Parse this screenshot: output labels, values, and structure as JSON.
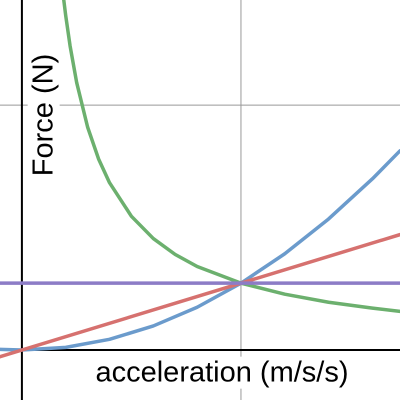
{
  "chart_data": {
    "type": "line",
    "x_label": "acceleration (m/s/s)",
    "y_label": "Force (N)",
    "xlim": [
      -0.1,
      1.726
    ],
    "ylim": [
      -0.204,
      1.429
    ],
    "xticks": [
      0,
      1
    ],
    "yticks": [
      0,
      1
    ],
    "grid": true,
    "series": [
      {
        "color": "#6cb06e",
        "x": [
          0.19,
          0.2,
          0.22,
          0.25,
          0.3,
          0.35,
          0.4,
          0.5,
          0.6,
          0.7,
          0.8,
          1,
          1.2,
          1.4,
          1.6,
          1.726
        ],
        "values": [
          1.437,
          1.365,
          1.241,
          1.092,
          0.91,
          0.78,
          0.683,
          0.546,
          0.455,
          0.39,
          0.341,
          0.273,
          0.228,
          0.195,
          0.171,
          0.158
        ]
      },
      {
        "color": "#6b9bcc",
        "x": [
          -0.1,
          0,
          0.2,
          0.4,
          0.6,
          0.8,
          1,
          1.2,
          1.4,
          1.6,
          1.726
        ],
        "values": [
          0.0027,
          0,
          0.0109,
          0.0437,
          0.0983,
          0.1747,
          0.273,
          0.3931,
          0.5351,
          0.6989,
          0.8133
        ]
      },
      {
        "color": "#d6716f",
        "x": [
          -0.1,
          1.726
        ],
        "values": [
          -0.0273,
          0.4712
        ]
      },
      {
        "color": "#8c7cc6",
        "x": [
          -0.1,
          1.726
        ],
        "values": [
          0.273,
          0.273
        ]
      }
    ]
  }
}
